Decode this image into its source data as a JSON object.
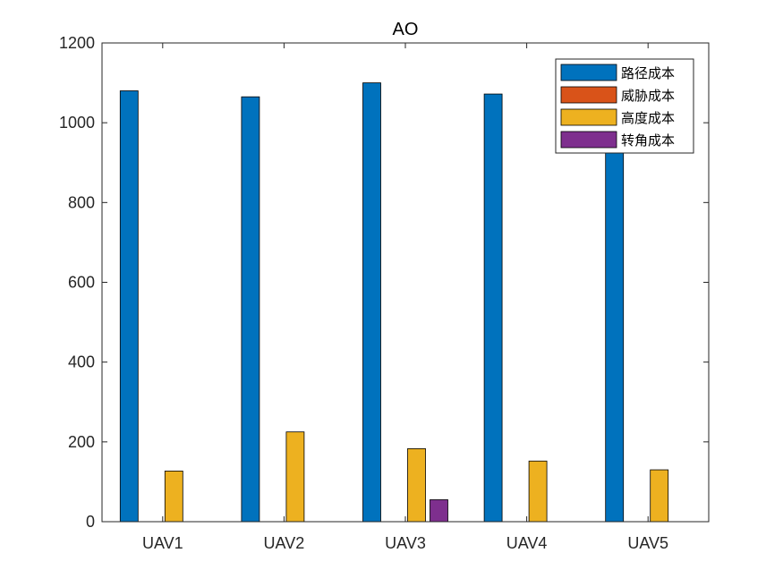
{
  "chart_data": {
    "type": "bar",
    "title": "AO",
    "xlabel": "",
    "ylabel": "",
    "categories": [
      "UAV1",
      "UAV2",
      "UAV3",
      "UAV4",
      "UAV5"
    ],
    "ylim": [
      0,
      1200
    ],
    "yticks": [
      0,
      200,
      400,
      600,
      800,
      1000,
      1200
    ],
    "grid": false,
    "legend_position": "top-right",
    "series": [
      {
        "name": "路径成本",
        "color": "#0072BD",
        "values": [
          1080,
          1065,
          1100,
          1072,
          1048
        ]
      },
      {
        "name": "威胁成本",
        "color": "#D95319",
        "values": [
          0,
          0,
          0,
          0,
          0
        ]
      },
      {
        "name": "高度成本",
        "color": "#EDB120",
        "values": [
          127,
          225,
          183,
          152,
          130
        ]
      },
      {
        "name": "转角成本",
        "color": "#7E2F8E",
        "values": [
          0,
          0,
          55,
          0,
          0
        ]
      }
    ]
  }
}
